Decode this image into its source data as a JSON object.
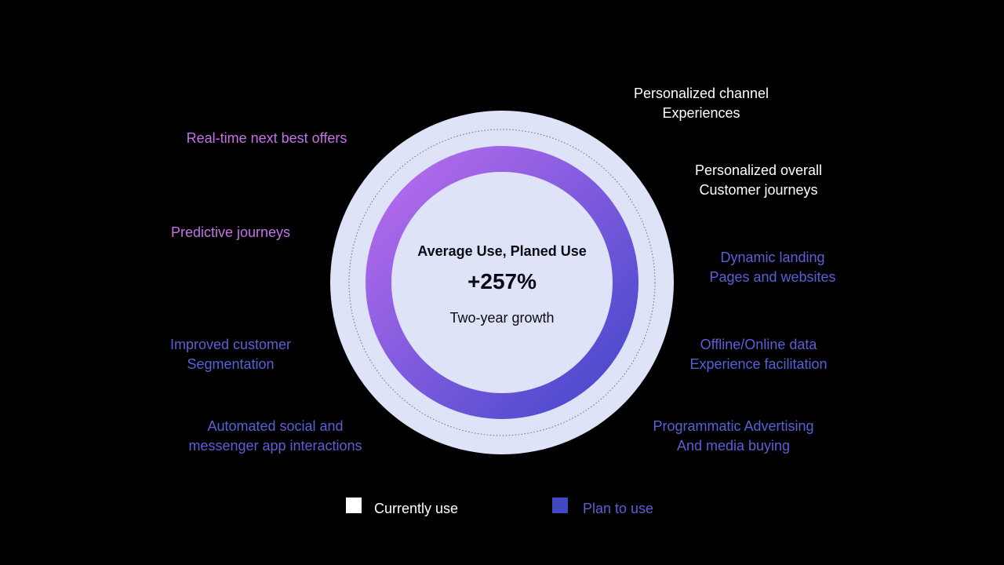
{
  "center": {
    "title": "Average Use, Planed Use",
    "value": "+257%",
    "subtitle": "Two-year growth"
  },
  "labels": {
    "real_time_offers": [
      "Real-time next best offers"
    ],
    "predictive_journeys": [
      "Predictive journeys"
    ],
    "improved_segmentation": [
      "Improved customer",
      "Segmentation"
    ],
    "automated_social": [
      "Automated social and",
      "messenger app interactions"
    ],
    "personalized_channel": [
      "Personalized channel",
      "Experiences"
    ],
    "personalized_overall": [
      "Personalized overall",
      "Customer journeys"
    ],
    "dynamic_landing": [
      "Dynamic landing",
      "Pages and websites"
    ],
    "offline_online": [
      "Offline/Online data",
      "Experience facilitation"
    ],
    "programmatic": [
      "Programmatic Advertising",
      "And media buying"
    ]
  },
  "legend": {
    "currently": "Currently use",
    "plan": "Plan to use"
  },
  "colors": {
    "background": "#000000",
    "outer_disc": "#dfe3f7",
    "inner_disc": "#dfe3f7",
    "gradient_start": "#c06ef0",
    "gradient_end": "#3d46c9",
    "pink_label": "#c472e8",
    "blue_label": "#5b5fd6",
    "white_label": "#ffffff",
    "legend_currently": "#ffffff",
    "legend_plan": "#4148c4"
  }
}
